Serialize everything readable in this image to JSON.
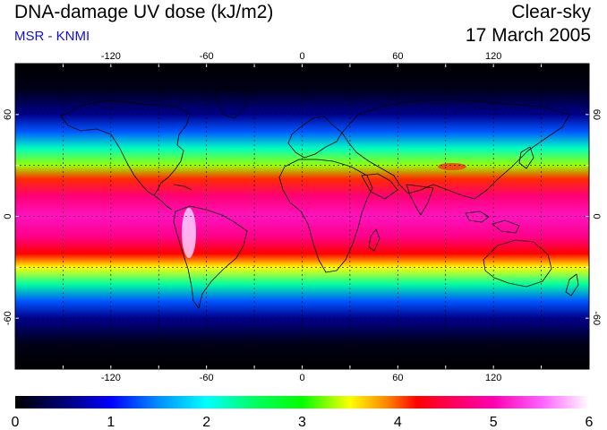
{
  "header": {
    "title": "DNA-damage UV dose (kJ/m2)",
    "source": "MSR - KNMI",
    "condition": "Clear-sky",
    "date": "17 March 2005"
  },
  "map": {
    "lon_range": [
      -180,
      180
    ],
    "lat_range": [
      -90,
      90
    ],
    "lon_ticks": [
      {
        "value": -120,
        "label": "-120"
      },
      {
        "value": -60,
        "label": "-60"
      },
      {
        "value": 0,
        "label": "0"
      },
      {
        "value": 60,
        "label": "60"
      },
      {
        "value": 120,
        "label": "120"
      }
    ],
    "lat_ticks": [
      {
        "value": 60,
        "label": "60"
      },
      {
        "value": 0,
        "label": "0"
      },
      {
        "value": -60,
        "label": "-60"
      }
    ],
    "grid_lon": [
      -150,
      -120,
      -90,
      -60,
      -30,
      0,
      30,
      60,
      90,
      120,
      150
    ],
    "grid_lat": [
      -60,
      -30,
      0,
      30,
      60
    ],
    "dose_profile": [
      {
        "lat": 90,
        "value": 0.0
      },
      {
        "lat": 75,
        "value": 0.1
      },
      {
        "lat": 60,
        "value": 0.6
      },
      {
        "lat": 50,
        "value": 1.3
      },
      {
        "lat": 40,
        "value": 2.2
      },
      {
        "lat": 30,
        "value": 3.3
      },
      {
        "lat": 22,
        "value": 4.1
      },
      {
        "lat": 12,
        "value": 4.7
      },
      {
        "lat": 0,
        "value": 5.1
      },
      {
        "lat": -12,
        "value": 4.8
      },
      {
        "lat": -22,
        "value": 4.2
      },
      {
        "lat": -30,
        "value": 3.5
      },
      {
        "lat": -40,
        "value": 2.3
      },
      {
        "lat": -50,
        "value": 1.3
      },
      {
        "lat": -60,
        "value": 0.6
      },
      {
        "lat": -75,
        "value": 0.1
      },
      {
        "lat": -90,
        "value": 0.0
      }
    ]
  },
  "colorbar": {
    "min": 0,
    "max": 6,
    "labels": [
      "0",
      "1",
      "2",
      "3",
      "4",
      "5",
      "6"
    ],
    "stops": [
      {
        "value": 0.0,
        "color": "#000000"
      },
      {
        "value": 0.6,
        "color": "#00008c"
      },
      {
        "value": 1.0,
        "color": "#0000ff"
      },
      {
        "value": 1.5,
        "color": "#0090ff"
      },
      {
        "value": 2.0,
        "color": "#00ffff"
      },
      {
        "value": 2.5,
        "color": "#00ff60"
      },
      {
        "value": 3.0,
        "color": "#00ff00"
      },
      {
        "value": 3.5,
        "color": "#ffff00"
      },
      {
        "value": 3.9,
        "color": "#ff8000"
      },
      {
        "value": 4.2,
        "color": "#ff0000"
      },
      {
        "value": 4.6,
        "color": "#ff0060"
      },
      {
        "value": 5.0,
        "color": "#ff00b0"
      },
      {
        "value": 5.5,
        "color": "#ff60ff"
      },
      {
        "value": 6.0,
        "color": "#ffffff"
      }
    ]
  }
}
